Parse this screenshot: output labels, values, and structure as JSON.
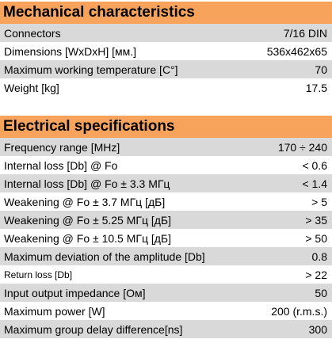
{
  "mechanical": {
    "title": "Mechanical characteristics",
    "rows": [
      {
        "label": "Connectors",
        "value": "7/16 DIN"
      },
      {
        "label": "Dimensions [WxDxH] [мм.]",
        "value": "536x462x65"
      },
      {
        "label": "Maximum working temperature [C°]",
        "value": "70"
      },
      {
        "label": "Weight [kg]",
        "value": "17.5"
      }
    ]
  },
  "electrical": {
    "title": "Electrical specifications",
    "rows": [
      {
        "label": "Frequency range [MHz]",
        "value": "170 ÷ 240"
      },
      {
        "label": "Internal loss [Db] @ Fo",
        "value": "< 0.6"
      },
      {
        "label": "Internal loss [Db] @ Fo ± 3.3 МГц",
        "value": "< 1.4"
      },
      {
        "label": "Weakening @ Fo ± 3.7 МГц [дБ]",
        "value": "> 5"
      },
      {
        "label": "Weakening @ Fo ± 5.25 МГц [дБ]",
        "value": "> 35"
      },
      {
        "label": "Weakening @ Fo ± 10.5 МГц [дБ]",
        "value": "> 50"
      },
      {
        "label": "Maximum deviation of the amplitude [Db]",
        "value": "0.8"
      },
      {
        "label": "Return loss [Db]",
        "value": "> 22"
      },
      {
        "label": "Input output impedance [Ом]",
        "value": "50"
      },
      {
        "label": "Maximum power [W]",
        "value": "200 (r.m.s.)"
      },
      {
        "label": "Maximum group delay difference[ns]",
        "value": "300"
      }
    ]
  }
}
